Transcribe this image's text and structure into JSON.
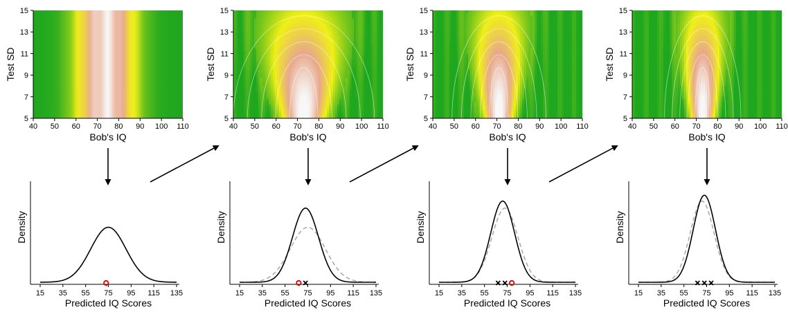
{
  "chart_data": [
    {
      "type": "heatmap",
      "xlabel": "Bob's IQ",
      "ylabel": "Test SD",
      "xlim": [
        40,
        110
      ],
      "ylim": [
        5,
        15
      ],
      "xticks": [
        "40",
        "50",
        "60",
        "70",
        "80",
        "90",
        "100",
        "110"
      ],
      "yticks": [
        "5",
        "7",
        "9",
        "11",
        "13",
        "15"
      ],
      "color_scale": [
        "#1fa71f",
        "#f0f016",
        "#e8a88c",
        "#f7f7f7"
      ],
      "posterior": {
        "mode": "none",
        "center": 74,
        "note_bands": [
          62,
          86
        ]
      }
    },
    {
      "type": "heatmap",
      "xlabel": "Bob's IQ",
      "ylabel": "Test SD",
      "xlim": [
        40,
        110
      ],
      "ylim": [
        5,
        15
      ],
      "xticks": [
        "40",
        "50",
        "60",
        "70",
        "80",
        "90",
        "100",
        "110"
      ],
      "yticks": [
        "5",
        "7",
        "9",
        "11",
        "13",
        "15"
      ],
      "color_scale": [
        "#1fa71f",
        "#f0f016",
        "#e8a88c",
        "#f7f7f7"
      ],
      "posterior": {
        "mode": "peak",
        "center": 73,
        "spread": 12,
        "peak_sd": 5
      }
    },
    {
      "type": "heatmap",
      "xlabel": "Bob's IQ",
      "ylabel": "Test SD",
      "xlim": [
        40,
        110
      ],
      "ylim": [
        5,
        15
      ],
      "xticks": [
        "40",
        "50",
        "60",
        "70",
        "80",
        "90",
        "100",
        "110"
      ],
      "yticks": [
        "5",
        "7",
        "9",
        "11",
        "13",
        "15"
      ],
      "color_scale": [
        "#1fa71f",
        "#f0f016",
        "#e8a88c",
        "#f7f7f7"
      ],
      "posterior": {
        "mode": "peak",
        "center": 71,
        "spread": 8,
        "peak_sd": 5
      }
    },
    {
      "type": "heatmap",
      "xlabel": "Bob's IQ",
      "ylabel": "Test SD",
      "xlim": [
        40,
        110
      ],
      "ylim": [
        5,
        15
      ],
      "xticks": [
        "40",
        "50",
        "60",
        "70",
        "80",
        "90",
        "100",
        "110"
      ],
      "yticks": [
        "5",
        "7",
        "9",
        "11",
        "13",
        "15"
      ],
      "color_scale": [
        "#1fa71f",
        "#f0f016",
        "#e8a88c",
        "#f7f7f7"
      ],
      "posterior": {
        "mode": "peak",
        "center": 73,
        "spread": 6.5,
        "peak_sd": 5
      }
    },
    {
      "type": "line",
      "xlabel": "Predicted IQ Scores",
      "ylabel": "Density",
      "xlim": [
        15,
        135
      ],
      "xticks": [
        "15",
        "35",
        "55",
        "75",
        "95",
        "115",
        "135"
      ],
      "series": [
        {
          "style": "solid",
          "mean": 75,
          "sd": 15.5
        }
      ],
      "points": [
        {
          "x": 73,
          "marker": "circle",
          "color": "#e00000"
        }
      ]
    },
    {
      "type": "line",
      "xlabel": "Predicted IQ Scores",
      "ylabel": "Density",
      "xlim": [
        15,
        135
      ],
      "xticks": [
        "15",
        "35",
        "55",
        "75",
        "95",
        "115",
        "135"
      ],
      "series": [
        {
          "style": "solid",
          "mean": 73,
          "sd": 11.5
        },
        {
          "style": "dashed",
          "mean": 75,
          "sd": 15.5
        }
      ],
      "points": [
        {
          "x": 67,
          "marker": "circle",
          "color": "#e00000"
        },
        {
          "x": 73,
          "marker": "cross",
          "color": "#000000"
        }
      ]
    },
    {
      "type": "line",
      "xlabel": "Predicted IQ Scores",
      "ylabel": "Density",
      "xlim": [
        15,
        135
      ],
      "xticks": [
        "15",
        "35",
        "55",
        "75",
        "95",
        "115",
        "135"
      ],
      "series": [
        {
          "style": "solid",
          "mean": 71,
          "sd": 10.5
        },
        {
          "style": "dashed",
          "mean": 73,
          "sd": 11.5
        }
      ],
      "points": [
        {
          "x": 67,
          "marker": "cross",
          "color": "#000000"
        },
        {
          "x": 73,
          "marker": "cross",
          "color": "#000000"
        },
        {
          "x": 79,
          "marker": "circle",
          "color": "#e00000"
        }
      ]
    },
    {
      "type": "line",
      "xlabel": "Predicted IQ Scores",
      "ylabel": "Density",
      "xlim": [
        15,
        135
      ],
      "xticks": [
        "15",
        "35",
        "55",
        "75",
        "95",
        "115",
        "135"
      ],
      "series": [
        {
          "style": "solid",
          "mean": 73,
          "sd": 9.8
        },
        {
          "style": "dashed",
          "mean": 71,
          "sd": 10.5
        }
      ],
      "points": [
        {
          "x": 67,
          "marker": "cross",
          "color": "#000000"
        },
        {
          "x": 73,
          "marker": "cross",
          "color": "#000000"
        },
        {
          "x": 79,
          "marker": "cross",
          "color": "#000000"
        }
      ]
    }
  ]
}
